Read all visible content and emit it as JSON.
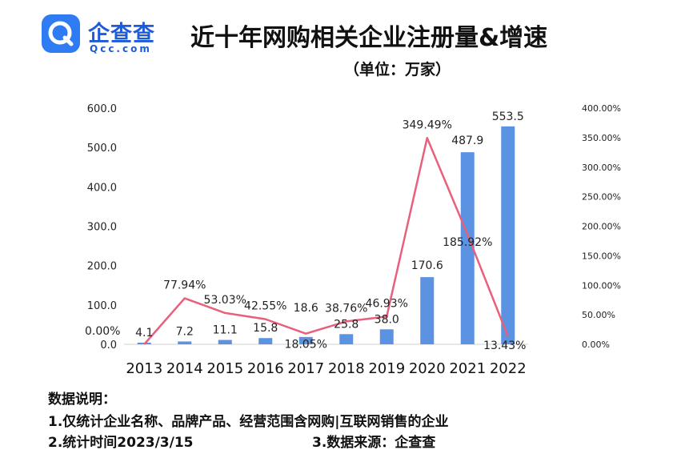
{
  "logo": {
    "name": "企查查",
    "domain": "Qcc.com",
    "brand_color": "#2f7bf3"
  },
  "title": "近十年网购相关企业注册量&增速",
  "subtitle": "（单位：万家）",
  "chart_data": {
    "type": "bar+line",
    "categories": [
      "2013",
      "2014",
      "2015",
      "2016",
      "2017",
      "2018",
      "2019",
      "2020",
      "2021",
      "2022"
    ],
    "series": [
      {
        "type": "bar",
        "axis": "left",
        "values": [
          4.1,
          7.2,
          11.1,
          15.8,
          18.6,
          25.8,
          38.0,
          170.6,
          487.9,
          553.5
        ],
        "labels": [
          "4.1",
          "7.2",
          "11.1",
          "15.8",
          "18.6",
          "25.8",
          "38.0",
          "170.6",
          "487.9",
          "553.5"
        ],
        "color": "#5b93e2"
      },
      {
        "type": "line",
        "axis": "right",
        "values": [
          0.0,
          77.94,
          53.03,
          42.55,
          18.05,
          38.76,
          46.93,
          349.49,
          185.92,
          13.43
        ],
        "labels": [
          "0.00%",
          "77.94%",
          "53.03%",
          "42.55%",
          "18.05%",
          "38.76%",
          "46.93%",
          "349.49%",
          "185.92%",
          "13.43%"
        ],
        "color": "#e8607a"
      }
    ],
    "left_axis": {
      "range": [
        0,
        600
      ],
      "ticks": [
        0,
        100,
        200,
        300,
        400,
        500,
        600
      ],
      "tick_labels": [
        "0.0",
        "100.0",
        "200.0",
        "300.0",
        "400.0",
        "500.0",
        "600.0"
      ]
    },
    "right_axis": {
      "range": [
        0,
        400
      ],
      "ticks": [
        0,
        50,
        100,
        150,
        200,
        250,
        300,
        350,
        400
      ],
      "tick_labels": [
        "0.00%",
        "50.00%",
        "100.00%",
        "150.00%",
        "200.00%",
        "250.00%",
        "300.00%",
        "350.00%",
        "400.00%"
      ]
    },
    "grid": false,
    "legend": "none"
  },
  "notes": {
    "heading": "数据说明：",
    "line1": "1.仅统计企业名称、品牌产品、经营范围含网购|互联网销售的企业",
    "line2": "2.统计时间2023/3/15",
    "line3": "3.数据来源：企查查"
  }
}
